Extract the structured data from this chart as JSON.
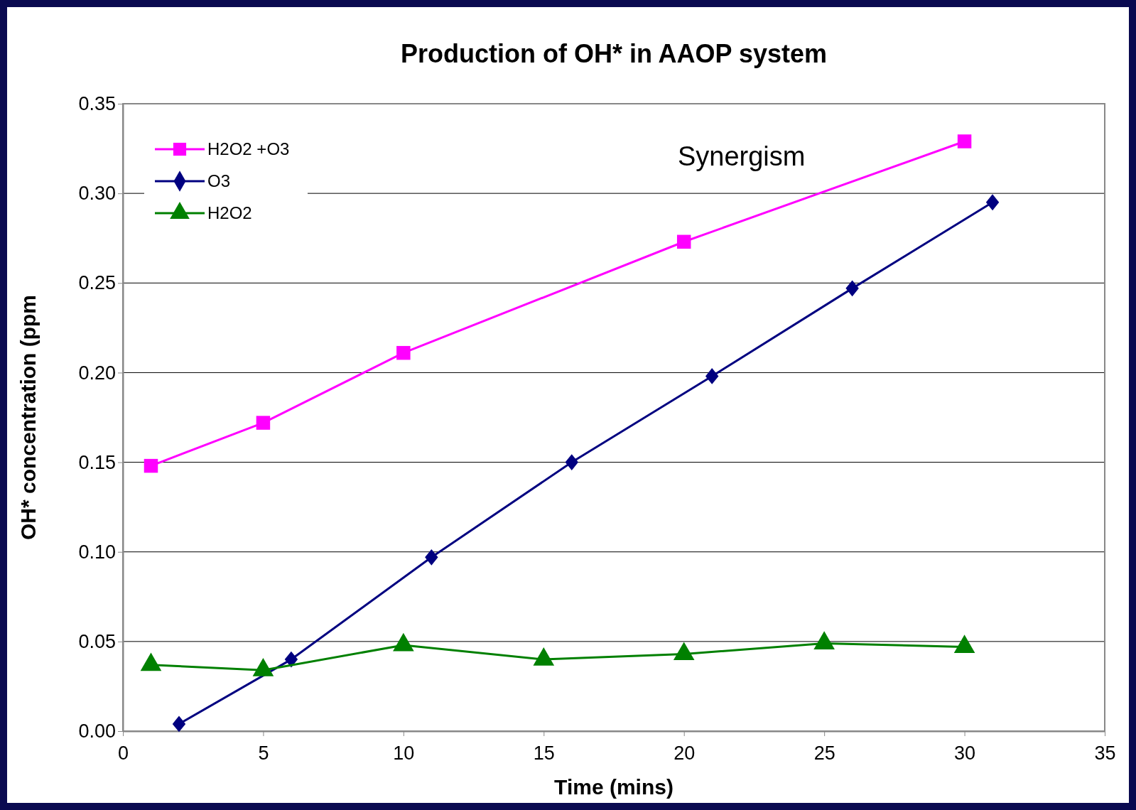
{
  "chart_data": {
    "type": "line",
    "title": "Production of OH* in AAOP system",
    "xlabel": "Time (mins)",
    "ylabel": "OH* concentration (ppm",
    "xlim": [
      0,
      35
    ],
    "xticks": [
      0,
      5,
      10,
      15,
      20,
      25,
      30,
      35
    ],
    "ylim": [
      0,
      0.35
    ],
    "yticks": [
      {
        "value": 0,
        "label": "0.00"
      },
      {
        "value": 0.05,
        "label": "0.05"
      },
      {
        "value": 0.1,
        "label": "0.10"
      },
      {
        "value": 0.15,
        "label": "0.15"
      },
      {
        "value": 0.2,
        "label": "0.20"
      },
      {
        "value": 0.25,
        "label": "0.25"
      },
      {
        "value": 0.3,
        "label": "0.30"
      },
      {
        "value": 0.35,
        "label": "0.35"
      }
    ],
    "grid": "y",
    "legend": "top left",
    "line_style": "solid",
    "annotations": [
      "Synergism"
    ],
    "series": [
      {
        "name": "H2O2 +O3",
        "color": "#ff00ff",
        "marker": "square",
        "x": [
          1,
          5,
          10,
          20,
          30
        ],
        "values": [
          0.148,
          0.172,
          0.211,
          0.273,
          0.329
        ]
      },
      {
        "name": "O3",
        "color": "#000080",
        "marker": "diamond",
        "x": [
          2,
          6,
          11,
          16,
          21,
          26,
          31
        ],
        "values": [
          0.004,
          0.04,
          0.097,
          0.15,
          0.198,
          0.247,
          0.295
        ]
      },
      {
        "name": "H2O2",
        "color": "#008000",
        "marker": "triangle",
        "x": [
          1,
          5,
          10,
          15,
          20,
          25,
          30
        ],
        "values": [
          0.037,
          0.034,
          0.048,
          0.04,
          0.043,
          0.049,
          0.047
        ]
      }
    ]
  }
}
